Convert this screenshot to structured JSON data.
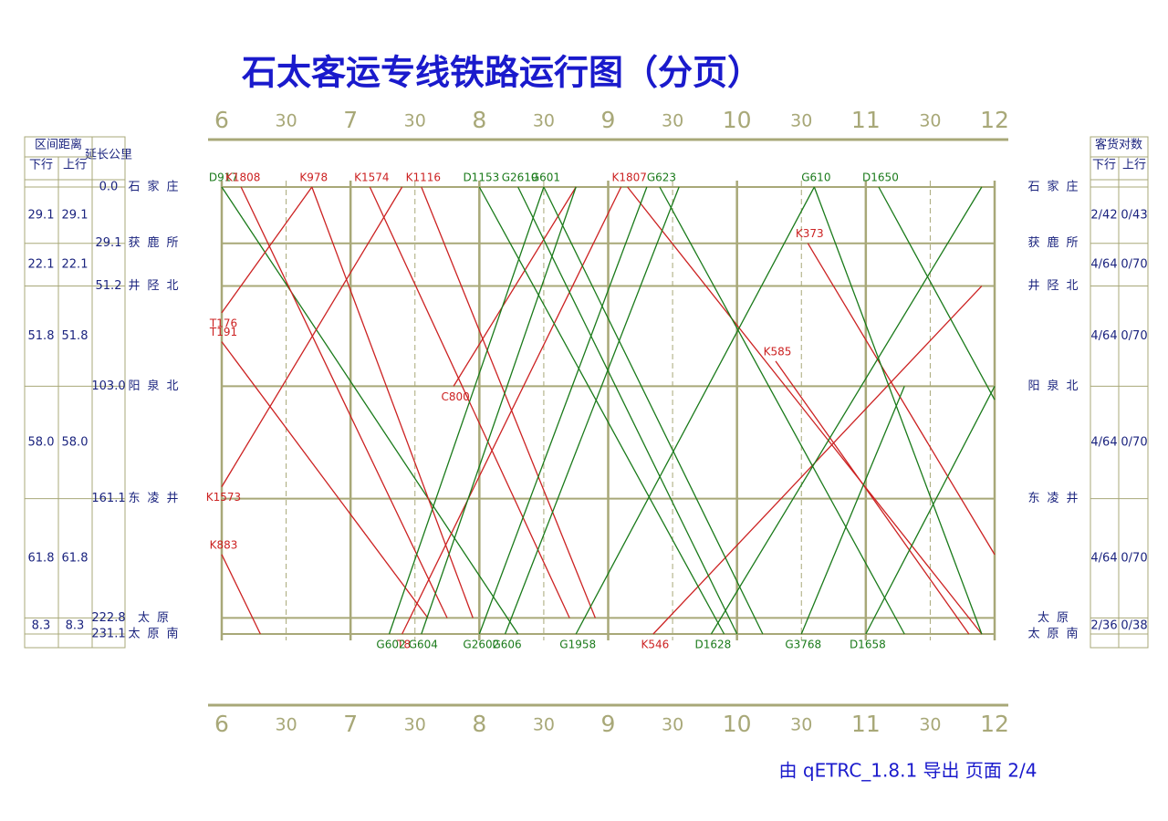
{
  "chart_data": {
    "type": "train-diagram",
    "title": "石太客运专线铁路运行图（分页）",
    "left_header": "区间距离",
    "down_header": "下行",
    "up_header": "上行",
    "km_header": "延长公里",
    "right_header": "客货对数",
    "footer": "由 qETRC_1.8.1 导出   页面 2/4",
    "xlim": [
      6,
      12
    ],
    "ylim": [
      0,
      231.1
    ],
    "xticks": [
      6,
      {
        "value": 6.5,
        "label": "30"
      },
      7,
      {
        "value": 7.5,
        "label": "30"
      },
      8,
      {
        "value": 8.5,
        "label": "30"
      },
      9,
      {
        "value": 9.5,
        "label": "30"
      },
      10,
      {
        "value": 10.5,
        "label": "30"
      },
      11,
      {
        "value": 11.5,
        "label": "30"
      },
      12
    ],
    "stations": [
      {
        "name": "石家庄",
        "km": {
          "value": 0,
          "label": "0.0"
        }
      },
      {
        "name": "获鹿所",
        "km": 29.1
      },
      {
        "name": "井陉北",
        "km": 51.2
      },
      {
        "name": "阳泉北",
        "km": {
          "value": 103,
          "label": "103.0"
        }
      },
      {
        "name": "东凌井",
        "km": 161.1
      },
      {
        "name": "太原",
        "km": 222.8
      },
      {
        "name": "太原南",
        "km": 231.1
      }
    ],
    "intervals": [
      {
        "down": "29.1",
        "up": "29.1",
        "pairs_down": "2/42",
        "pairs_up": "0/43"
      },
      {
        "down": "22.1",
        "up": "22.1",
        "pairs_down": "4/64",
        "pairs_up": "0/70"
      },
      {
        "down": "51.8",
        "up": "51.8",
        "pairs_down": "4/64",
        "pairs_up": "0/70"
      },
      {
        "down": "58.0",
        "up": "58.0",
        "pairs_down": "4/64",
        "pairs_up": "0/70"
      },
      {
        "down": "61.8",
        "up": "61.8",
        "pairs_down": "4/64",
        "pairs_up": "0/70"
      },
      {
        "down": "8.3",
        "up": "8.3",
        "pairs_down": "2/36",
        "pairs_up": "0/38"
      }
    ],
    "trains": [
      {
        "name": "D917",
        "color": "#1a7a1a",
        "x": [
          6.0,
          8.3
        ],
        "km": [
          0,
          231.1
        ]
      },
      {
        "name": "K1808",
        "color": "#cc2222",
        "x": [
          6.15,
          7.75
        ],
        "km": [
          0,
          222.8
        ]
      },
      {
        "name": "K978",
        "color": "#cc2222",
        "x": [
          6.7,
          7.95
        ],
        "km": [
          0,
          222.8
        ]
      },
      {
        "name": "K1574",
        "color": "#cc2222",
        "x": [
          7.15,
          8.7
        ],
        "km": [
          0,
          222.8
        ]
      },
      {
        "name": "K1116",
        "color": "#cc2222",
        "x": [
          7.55,
          8.9
        ],
        "km": [
          0,
          222.8
        ]
      },
      {
        "name": "T191",
        "color": "#cc2222",
        "x": [
          6.0,
          7.6
        ],
        "km": [
          80,
          222.8
        ]
      },
      {
        "name": "K883",
        "color": "#cc2222",
        "x": [
          6.0,
          6.3
        ],
        "km": [
          190,
          231.1
        ]
      },
      {
        "name": "T176",
        "color": "#cc2222",
        "x": [
          6.0,
          6.7
        ],
        "km": [
          65,
          0
        ]
      },
      {
        "name": "K1573",
        "color": "#cc2222",
        "x": [
          6.0,
          7.4
        ],
        "km": [
          155,
          0
        ]
      },
      {
        "name": "T8",
        "color": "#cc2222",
        "x": [
          7.4,
          9.1
        ],
        "km": [
          231.1,
          0
        ]
      },
      {
        "name": "C800",
        "color": "#cc2222",
        "x": [
          7.8,
          8.75
        ],
        "km": [
          103,
          0
        ]
      },
      {
        "name": "K1807",
        "color": "#cc2222",
        "x": [
          9.15,
          11.9
        ],
        "km": [
          0,
          231.1
        ]
      },
      {
        "name": "K546",
        "color": "#cc2222",
        "x": [
          9.35,
          11.9
        ],
        "km": [
          231.1,
          51.2
        ]
      },
      {
        "name": "K373",
        "color": "#cc2222",
        "x": [
          10.55,
          12.0
        ],
        "km": [
          29.1,
          190
        ]
      },
      {
        "name": "K585",
        "color": "#cc2222",
        "x": [
          10.3,
          11.8
        ],
        "km": [
          90,
          231.1
        ]
      },
      {
        "name": "G602",
        "color": "#1a7a1a",
        "x": [
          7.3,
          8.5
        ],
        "km": [
          231.1,
          0
        ]
      },
      {
        "name": "G604",
        "color": "#1a7a1a",
        "x": [
          7.55,
          8.75
        ],
        "km": [
          231.1,
          0
        ]
      },
      {
        "name": "G2602",
        "color": "#1a7a1a",
        "x": [
          8.0,
          9.3
        ],
        "km": [
          231.1,
          0
        ]
      },
      {
        "name": "G606",
        "color": "#1a7a1a",
        "x": [
          8.2,
          9.55
        ],
        "km": [
          231.1,
          0
        ]
      },
      {
        "name": "G1958",
        "color": "#1a7a1a",
        "x": [
          8.75,
          10.6
        ],
        "km": [
          231.1,
          0
        ]
      },
      {
        "name": "D1628",
        "color": "#1a7a1a",
        "x": [
          9.8,
          11.9
        ],
        "km": [
          231.1,
          0
        ]
      },
      {
        "name": "G3768",
        "color": "#1a7a1a",
        "x": [
          10.5,
          11.3
        ],
        "km": [
          231.1,
          103
        ]
      },
      {
        "name": "D1658",
        "color": "#1a7a1a",
        "x": [
          11.0,
          12.0
        ],
        "km": [
          231.1,
          103
        ]
      },
      {
        "name": "D1153",
        "color": "#1a7a1a",
        "x": [
          8.0,
          9.9
        ],
        "km": [
          0,
          231.1
        ]
      },
      {
        "name": "G2619",
        "color": "#1a7a1a",
        "x": [
          8.3,
          10.0
        ],
        "km": [
          0,
          231.1
        ]
      },
      {
        "name": "G601",
        "color": "#1a7a1a",
        "x": [
          8.5,
          10.2
        ],
        "km": [
          0,
          231.1
        ]
      },
      {
        "name": "G623",
        "color": "#1a7a1a",
        "x": [
          9.4,
          11.3
        ],
        "km": [
          0,
          231.1
        ]
      },
      {
        "name": "D1650",
        "color": "#1a7a1a",
        "x": [
          11.1,
          12.0
        ],
        "km": [
          0,
          110
        ]
      },
      {
        "name": "G610",
        "color": "#1a7a1a",
        "x": [
          10.6,
          11.9
        ],
        "km": [
          0,
          231.1
        ]
      }
    ]
  }
}
